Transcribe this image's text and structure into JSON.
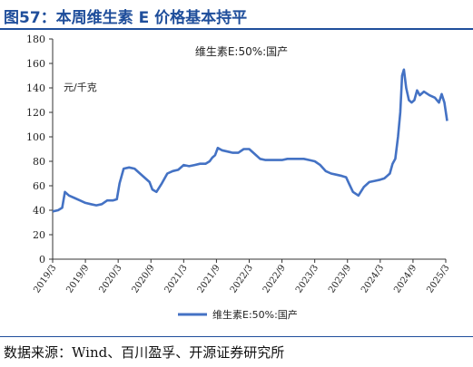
{
  "figure": {
    "title": "图57：本周维生素 E 价格基本持平",
    "source": "数据来源：Wind、百川盈孚、开源证券研究所"
  },
  "colors": {
    "accent": "#1f4e9b",
    "line": "#4472c4",
    "axis": "#333333"
  },
  "chart_data": {
    "type": "line",
    "title": "维生素E:50%:国产",
    "ylabel": "元/千克",
    "xlabel": "",
    "ylim": [
      0,
      180
    ],
    "yticks": [
      0,
      20,
      40,
      60,
      80,
      100,
      120,
      140,
      160,
      180
    ],
    "xticks": [
      "2019/3",
      "2019/9",
      "2020/3",
      "2020/9",
      "2021/3",
      "2021/9",
      "2022/3",
      "2022/9",
      "2023/3",
      "2023/9",
      "2024/3",
      "2024/9",
      "2025/3"
    ],
    "grid": false,
    "legend_position": "bottom",
    "series": [
      {
        "name": "维生素E:50%:国产",
        "x": [
          "2019/3",
          "2019/4",
          "2019/5",
          "2019/5",
          "2019/6",
          "2019/7",
          "2019/8",
          "2019/9",
          "2019/10",
          "2019/11",
          "2019/12",
          "2020/1",
          "2020/2",
          "2020/3",
          "2020/3",
          "2020/4",
          "2020/5",
          "2020/6",
          "2020/7",
          "2020/8",
          "2020/9",
          "2020/9",
          "2020/10",
          "2020/11",
          "2020/12",
          "2021/1",
          "2021/2",
          "2021/3",
          "2021/4",
          "2021/5",
          "2021/6",
          "2021/7",
          "2021/8",
          "2021/8",
          "2021/9",
          "2021/9",
          "2021/10",
          "2021/11",
          "2021/12",
          "2022/1",
          "2022/2",
          "2022/3",
          "2022/4",
          "2022/5",
          "2022/6",
          "2022/7",
          "2022/8",
          "2022/9",
          "2022/10",
          "2022/11",
          "2022/12",
          "2023/1",
          "2023/2",
          "2023/3",
          "2023/4",
          "2023/5",
          "2023/6",
          "2023/7",
          "2023/8",
          "2023/9",
          "2023/9",
          "2023/10",
          "2023/11",
          "2023/12",
          "2024/1",
          "2024/2",
          "2024/3",
          "2024/4",
          "2024/4",
          "2024/5",
          "2024/5",
          "2024/6",
          "2024/6",
          "2024/7",
          "2024/7",
          "2024/7",
          "2024/8",
          "2024/8",
          "2024/9",
          "2024/9",
          "2024/10",
          "2024/10",
          "2024/11",
          "2024/12",
          "2025/1",
          "2025/2",
          "2025/2",
          "2025/3",
          "2025/3"
        ],
        "values": [
          39,
          40,
          42,
          55,
          52,
          50,
          48,
          46,
          45,
          44,
          45,
          48,
          48,
          49,
          62,
          74,
          75,
          74,
          70,
          66,
          63,
          57,
          55,
          62,
          70,
          72,
          73,
          77,
          76,
          77,
          78,
          78,
          80,
          83,
          85,
          91,
          89,
          88,
          87,
          87,
          90,
          90,
          86,
          82,
          81,
          81,
          81,
          81,
          82,
          82,
          82,
          82,
          81,
          80,
          77,
          72,
          70,
          69,
          68,
          67,
          62,
          55,
          52,
          59,
          63,
          64,
          65,
          66,
          68,
          70,
          78,
          82,
          100,
          120,
          150,
          155,
          140,
          130,
          128,
          130,
          138,
          134,
          137,
          134,
          132,
          128,
          135,
          128,
          113
        ]
      }
    ]
  }
}
